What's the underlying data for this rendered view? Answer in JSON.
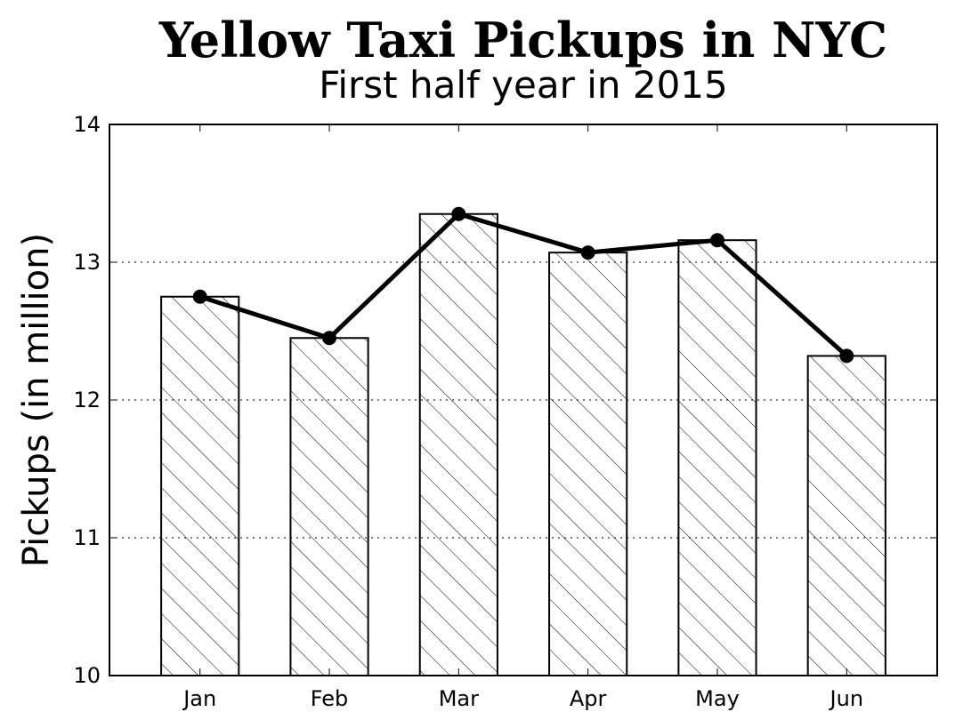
{
  "chart_data": {
    "type": "bar",
    "title": "Yellow Taxi Pickups in NYC",
    "subtitle": "First half year in 2015",
    "xlabel": "",
    "ylabel": "Pickups (in million)",
    "categories": [
      "Jan",
      "Feb",
      "Mar",
      "Apr",
      "May",
      "Jun"
    ],
    "series": [
      {
        "type": "bar",
        "values": [
          12.75,
          12.45,
          13.35,
          13.07,
          13.16,
          12.32
        ]
      },
      {
        "type": "line",
        "values": [
          12.75,
          12.45,
          13.35,
          13.07,
          13.16,
          12.32
        ]
      }
    ],
    "ylim": [
      10,
      14
    ],
    "yticks": [
      10,
      11,
      12,
      13,
      14
    ],
    "grid": "y-dotted",
    "bar_fill": "hatched",
    "colors": {
      "bar_edge": "#000000",
      "line": "#000000",
      "background": "#ffffff"
    }
  }
}
